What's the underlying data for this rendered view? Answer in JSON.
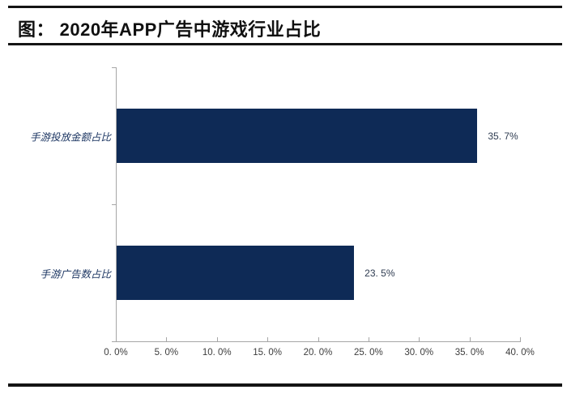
{
  "header": {
    "title": "图： 2020年APP广告中游戏行业占比"
  },
  "chart_data": {
    "type": "bar",
    "orientation": "horizontal",
    "title": "2020年APP广告中游戏行业占比",
    "categories": [
      "手游投放金额占比",
      "手游广告数占比"
    ],
    "values": [
      35.7,
      23.5
    ],
    "value_labels": [
      "35. 7%",
      "23. 5%"
    ],
    "xlabel": "",
    "ylabel": "",
    "xlim": [
      0,
      40
    ],
    "x_tick_values": [
      0,
      5,
      10,
      15,
      20,
      25,
      30,
      35,
      40
    ],
    "x_tick_labels": [
      "0. 0%",
      "5. 0%",
      "10. 0%",
      "15. 0%",
      "20. 0%",
      "25. 0%",
      "30. 0%",
      "35. 0%",
      "40. 0%"
    ],
    "grid": false,
    "legend": "none",
    "bar_color": "#0e2a56"
  },
  "colors": {
    "bar": "#0e2a56",
    "axis": "#a6a6a6",
    "tick_label": "#3d3d3d",
    "value_label": "#2e3b50",
    "category_label": "#1f3864",
    "rule": "#141414"
  }
}
